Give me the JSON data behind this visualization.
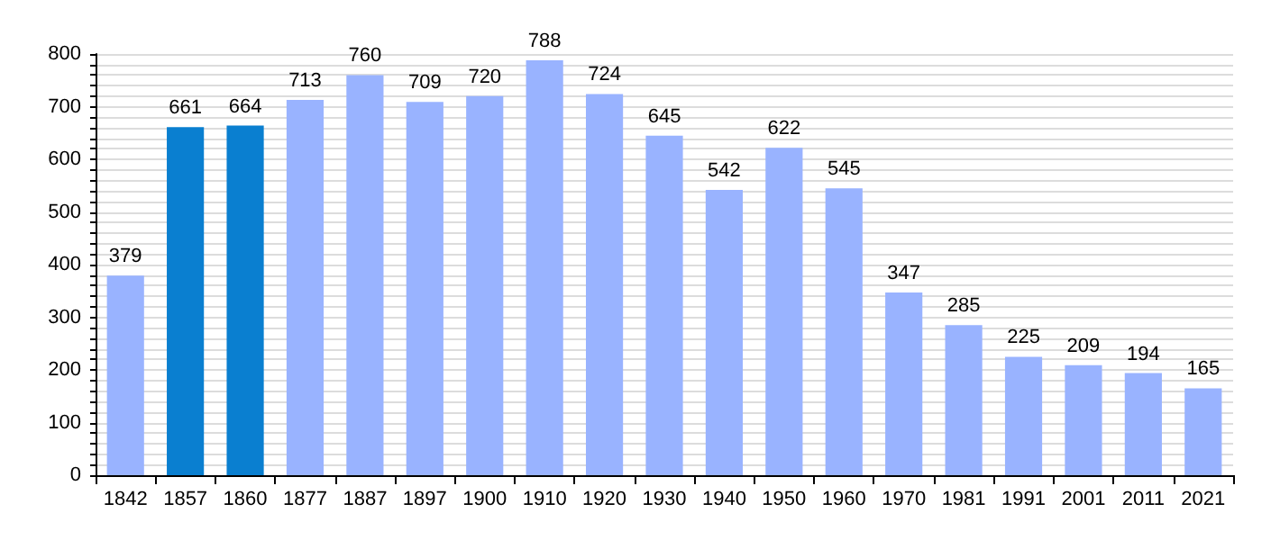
{
  "chart_data": {
    "type": "bar",
    "categories": [
      "1842",
      "1857",
      "1860",
      "1877",
      "1887",
      "1897",
      "1900",
      "1910",
      "1920",
      "1930",
      "1940",
      "1950",
      "1960",
      "1970",
      "1981",
      "1991",
      "2001",
      "2011",
      "2021"
    ],
    "values": [
      379,
      661,
      664,
      713,
      760,
      709,
      720,
      788,
      724,
      645,
      542,
      622,
      545,
      347,
      285,
      225,
      209,
      194,
      165
    ],
    "colors": [
      "#99b3ff",
      "#0a7fd0",
      "#0a7fd0",
      "#99b3ff",
      "#99b3ff",
      "#99b3ff",
      "#99b3ff",
      "#99b3ff",
      "#99b3ff",
      "#99b3ff",
      "#99b3ff",
      "#99b3ff",
      "#99b3ff",
      "#99b3ff",
      "#99b3ff",
      "#99b3ff",
      "#99b3ff",
      "#99b3ff",
      "#99b3ff"
    ],
    "ylim": [
      0,
      800
    ],
    "yticks": [
      0,
      {
        "value": 20,
        "label": null
      },
      {
        "value": 40,
        "label": null
      },
      {
        "value": 60,
        "label": null
      },
      {
        "value": 80,
        "label": null
      },
      100,
      {
        "value": 120,
        "label": null
      },
      {
        "value": 140,
        "label": null
      },
      {
        "value": 160,
        "label": null
      },
      {
        "value": 180,
        "label": null
      },
      200,
      {
        "value": 220,
        "label": null
      },
      {
        "value": 240,
        "label": null
      },
      {
        "value": 260,
        "label": null
      },
      {
        "value": 280,
        "label": null
      },
      300,
      {
        "value": 320,
        "label": null
      },
      {
        "value": 340,
        "label": null
      },
      {
        "value": 360,
        "label": null
      },
      {
        "value": 380,
        "label": null
      },
      400,
      {
        "value": 420,
        "label": null
      },
      {
        "value": 440,
        "label": null
      },
      {
        "value": 460,
        "label": null
      },
      {
        "value": 480,
        "label": null
      },
      500,
      {
        "value": 520,
        "label": null
      },
      {
        "value": 540,
        "label": null
      },
      {
        "value": 560,
        "label": null
      },
      {
        "value": 580,
        "label": null
      },
      600,
      {
        "value": 620,
        "label": null
      },
      {
        "value": 640,
        "label": null
      },
      {
        "value": 660,
        "label": null
      },
      {
        "value": 680,
        "label": null
      },
      700,
      {
        "value": 720,
        "label": null
      },
      {
        "value": 740,
        "label": null
      },
      {
        "value": 760,
        "label": null
      },
      {
        "value": 780,
        "label": null
      },
      800
    ],
    "grid": "y",
    "data_labels": true
  }
}
